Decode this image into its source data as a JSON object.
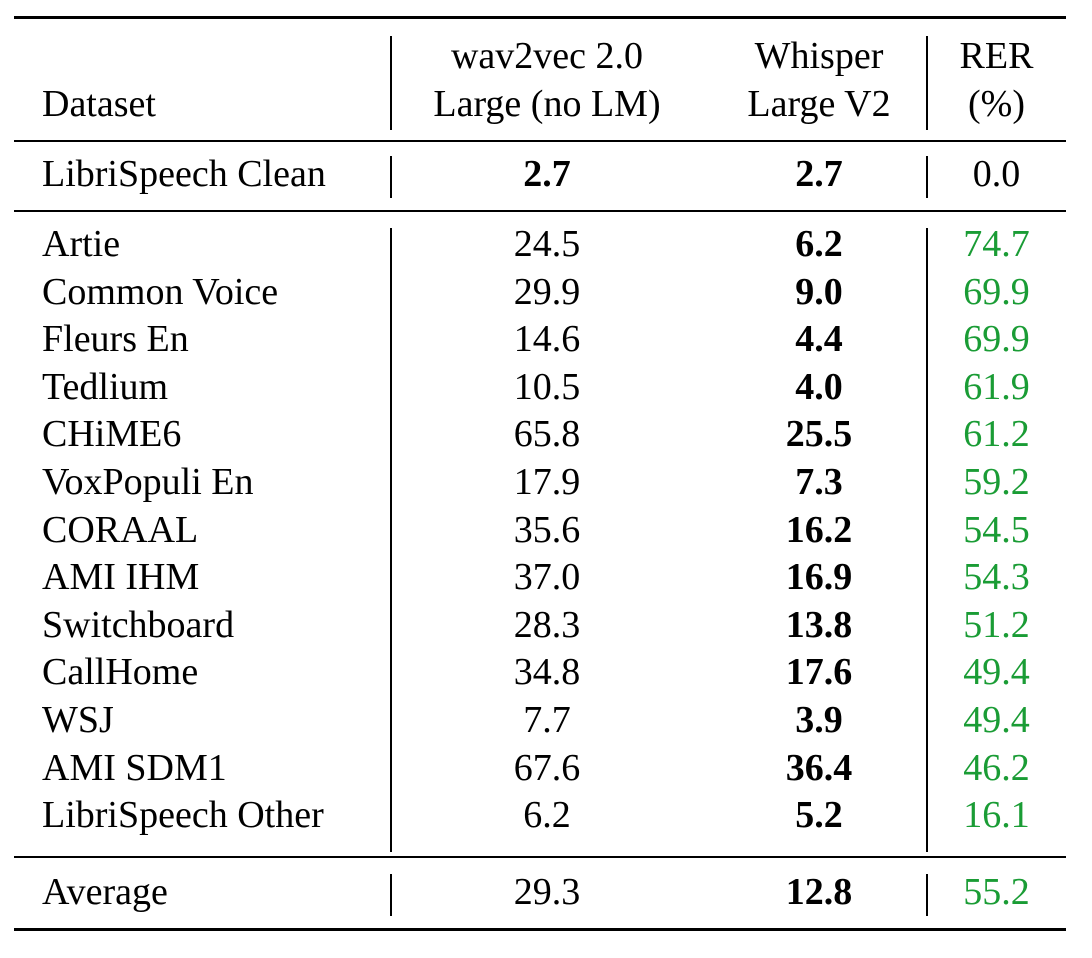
{
  "header": {
    "dataset": "Dataset",
    "w2v_line1": "wav2vec 2.0",
    "w2v_line2": "Large (no LM)",
    "wh_line1": "Whisper",
    "wh_line2": "Large V2",
    "rer_line1": "RER",
    "rer_line2": "(%)"
  },
  "reference_row": {
    "dataset": "LibriSpeech Clean",
    "w2v": "2.7",
    "whisper": "2.7",
    "rer": "0.0"
  },
  "rows": [
    {
      "dataset": "Artie",
      "w2v": "24.5",
      "whisper": "6.2",
      "rer": "74.7"
    },
    {
      "dataset": "Common Voice",
      "w2v": "29.9",
      "whisper": "9.0",
      "rer": "69.9"
    },
    {
      "dataset": "Fleurs En",
      "w2v": "14.6",
      "whisper": "4.4",
      "rer": "69.9"
    },
    {
      "dataset": "Tedlium",
      "w2v": "10.5",
      "whisper": "4.0",
      "rer": "61.9"
    },
    {
      "dataset": "CHiME6",
      "w2v": "65.8",
      "whisper": "25.5",
      "rer": "61.2"
    },
    {
      "dataset": "VoxPopuli En",
      "w2v": "17.9",
      "whisper": "7.3",
      "rer": "59.2"
    },
    {
      "dataset": "CORAAL",
      "w2v": "35.6",
      "whisper": "16.2",
      "rer": "54.5"
    },
    {
      "dataset": "AMI IHM",
      "w2v": "37.0",
      "whisper": "16.9",
      "rer": "54.3"
    },
    {
      "dataset": "Switchboard",
      "w2v": "28.3",
      "whisper": "13.8",
      "rer": "51.2"
    },
    {
      "dataset": "CallHome",
      "w2v": "34.8",
      "whisper": "17.6",
      "rer": "49.4"
    },
    {
      "dataset": "WSJ",
      "w2v": "7.7",
      "whisper": "3.9",
      "rer": "49.4"
    },
    {
      "dataset": "AMI SDM1",
      "w2v": "67.6",
      "whisper": "36.4",
      "rer": "46.2"
    },
    {
      "dataset": "LibriSpeech Other",
      "w2v": "6.2",
      "whisper": "5.2",
      "rer": "16.1"
    }
  ],
  "average_row": {
    "dataset": "Average",
    "w2v": "29.3",
    "whisper": "12.8",
    "rer": "55.2"
  },
  "colors": {
    "rer_positive": "#1a9c35",
    "text": "#000000"
  }
}
